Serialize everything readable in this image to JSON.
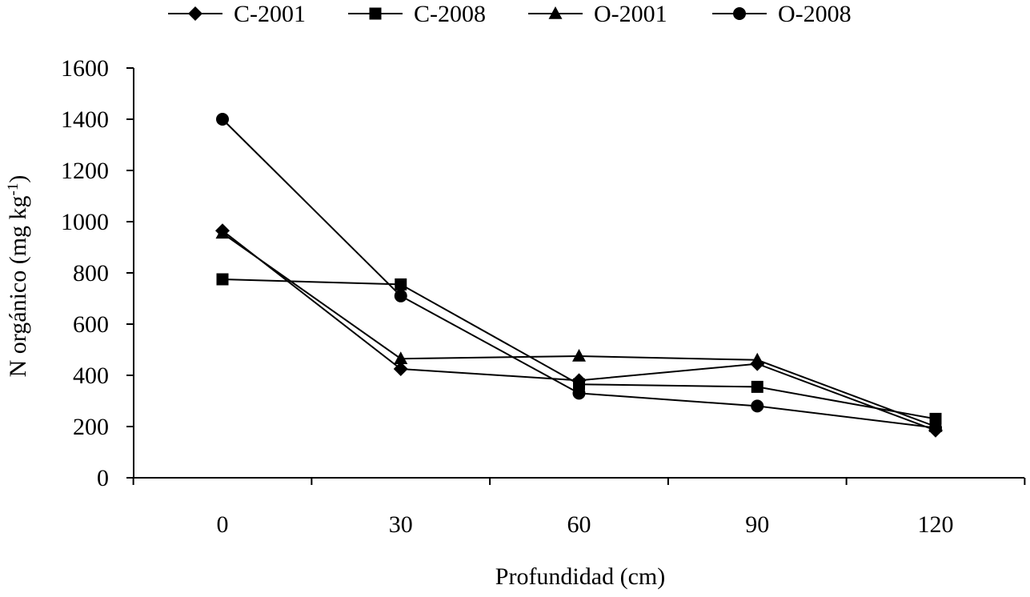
{
  "chart_data": {
    "type": "line",
    "title": "",
    "xlabel": "Profundidad (cm)",
    "ylabel": "N orgánico (mg kg",
    "ylabel_superscript": "-1",
    "ylabel_suffix": ")",
    "categories": [
      "0",
      "30",
      "60",
      "90",
      "120"
    ],
    "x": [
      0,
      30,
      60,
      90,
      120
    ],
    "ylim": [
      0,
      1600
    ],
    "yticks": [
      "0",
      "200",
      "400",
      "600",
      "800",
      "1000",
      "1200",
      "1400",
      "1600"
    ],
    "grid": false,
    "legend_position": "top",
    "series": [
      {
        "name": "C-2001",
        "marker": "diamond",
        "values": [
          965,
          425,
          380,
          445,
          185
        ]
      },
      {
        "name": "C-2008",
        "marker": "square",
        "values": [
          775,
          755,
          365,
          355,
          230
        ]
      },
      {
        "name": "O-2001",
        "marker": "triangle",
        "values": [
          955,
          465,
          475,
          460,
          200
        ]
      },
      {
        "name": "O-2008",
        "marker": "circle",
        "values": [
          1400,
          710,
          330,
          280,
          195
        ]
      }
    ]
  },
  "colors": {
    "line": "#000000",
    "marker": "#000000",
    "background": "#ffffff"
  }
}
